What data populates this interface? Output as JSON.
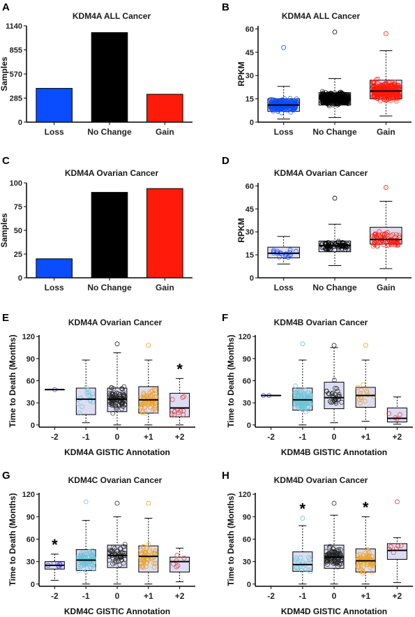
{
  "chart_data": [
    {
      "letter": "A",
      "type": "bar",
      "title": "KDM4A ALL Cancer",
      "categories": [
        "Loss",
        "No Change",
        "Gain"
      ],
      "values": [
        400,
        1060,
        330
      ],
      "colors": [
        "#0a4cff",
        "#000000",
        "#ff1a0a"
      ],
      "ylabel": "Samples",
      "ylim": [
        0,
        1140
      ],
      "yticks": [
        0,
        285,
        570,
        855,
        1140
      ],
      "ytick_labels": [
        "0",
        "285",
        "570",
        "855",
        "1140"
      ]
    },
    {
      "letter": "B",
      "type": "box",
      "title": "KDM4A ALL Cancer",
      "categories": [
        "Loss",
        "No Change",
        "Gain"
      ],
      "ylabel": "RPKM",
      "ylim": [
        0,
        62
      ],
      "yticks": [
        0,
        15,
        30,
        45,
        60
      ],
      "ytick_labels": [
        "0",
        "15",
        "30",
        "45",
        "60"
      ],
      "boxes": [
        {
          "q1": 7,
          "median": 11,
          "q3": 15,
          "low": 2,
          "high": 23,
          "n": 260,
          "color": "#0a4cff",
          "max": 48
        },
        {
          "q1": 11,
          "median": 15,
          "q3": 19,
          "low": 3,
          "high": 28,
          "n": 420,
          "color": "#000000",
          "max": 58
        },
        {
          "q1": 15,
          "median": 20,
          "q3": 27,
          "low": 4,
          "high": 46,
          "n": 300,
          "color": "#ff1a0a",
          "max": 57
        }
      ]
    },
    {
      "letter": "C",
      "type": "bar",
      "title": "KDM4A Ovarian Cancer",
      "categories": [
        "Loss",
        "No Change",
        "Gain"
      ],
      "values": [
        20,
        90,
        94
      ],
      "colors": [
        "#0a4cff",
        "#000000",
        "#ff1a0a"
      ],
      "ylabel": "Samples",
      "ylim": [
        0,
        100
      ],
      "yticks": [
        0,
        25,
        50,
        75,
        100
      ],
      "ytick_labels": [
        "0",
        "25",
        "50",
        "75",
        "100"
      ]
    },
    {
      "letter": "D",
      "type": "box",
      "title": "KDM4A Ovarian Cancer",
      "categories": [
        "Loss",
        "No Change",
        "Gain"
      ],
      "ylabel": "RPKM",
      "ylim": [
        0,
        62
      ],
      "yticks": [
        0,
        15,
        30,
        45,
        60
      ],
      "ytick_labels": [
        "0",
        "15",
        "30",
        "45",
        "60"
      ],
      "boxes": [
        {
          "q1": 13,
          "median": 16,
          "q3": 20,
          "low": 9,
          "high": 27,
          "n": 18,
          "color": "#0a4cff"
        },
        {
          "q1": 17,
          "median": 21,
          "q3": 24,
          "low": 8,
          "high": 35,
          "n": 70,
          "color": "#000000",
          "max": 52
        },
        {
          "q1": 22,
          "median": 25,
          "q3": 33,
          "low": 6,
          "high": 50,
          "n": 80,
          "color": "#ff1a0a",
          "max": 59
        }
      ]
    },
    {
      "letter": "E",
      "type": "box",
      "title": "KDM4A Ovarian Cancer",
      "categories": [
        "-2",
        "-1",
        "0",
        "+1",
        "+2"
      ],
      "xlabel": "KDM4A GISTIC Annotation",
      "ylabel": "Time to Death (Months)",
      "ylim": [
        -3,
        122
      ],
      "yticks": [
        0,
        30,
        60,
        90,
        120
      ],
      "ytick_labels": [
        "0",
        "30",
        "60",
        "90",
        "120"
      ],
      "significance": [
        "",
        "",
        "",
        "",
        "*"
      ],
      "boxes": [
        {
          "q1": 48,
          "median": 48,
          "q3": 48,
          "low": 48,
          "high": 48,
          "n": 1,
          "color": "#2b2bd6"
        },
        {
          "q1": 14,
          "median": 35,
          "q3": 50,
          "low": 3,
          "high": 88,
          "n": 16,
          "color": "#6cc4d8"
        },
        {
          "q1": 18,
          "median": 35,
          "q3": 50,
          "low": 0,
          "high": 98,
          "n": 85,
          "color": "#222222",
          "max": 110
        },
        {
          "q1": 16,
          "median": 34,
          "q3": 52,
          "low": 0,
          "high": 88,
          "n": 70,
          "color": "#f0a020",
          "max": 108
        },
        {
          "q1": 11,
          "median": 23,
          "q3": 43,
          "low": 0,
          "high": 63,
          "n": 12,
          "color": "#e53030"
        }
      ]
    },
    {
      "letter": "F",
      "type": "box",
      "title": "KDM4B Ovarian Cancer",
      "categories": [
        "-2",
        "-1",
        "0",
        "+1",
        "+2"
      ],
      "xlabel": "KDM4B GISTIC Annotation",
      "ylabel": "Time to Death (Months)",
      "ylim": [
        -3,
        122
      ],
      "yticks": [
        0,
        30,
        60,
        90,
        120
      ],
      "ytick_labels": [
        "0",
        "30",
        "60",
        "90",
        "120"
      ],
      "significance": [
        "",
        "",
        "",
        "",
        ""
      ],
      "boxes": [
        {
          "q1": 40,
          "median": 40,
          "q3": 40,
          "low": 40,
          "high": 40,
          "n": 2,
          "color": "#2b2bd6"
        },
        {
          "q1": 20,
          "median": 34,
          "q3": 50,
          "low": 0,
          "high": 88,
          "n": 130,
          "color": "#6cc4d8",
          "max": 110
        },
        {
          "q1": 22,
          "median": 37,
          "q3": 58,
          "low": 3,
          "high": 105,
          "n": 30,
          "color": "#222222",
          "max": 108
        },
        {
          "q1": 24,
          "median": 40,
          "q3": 51,
          "low": 5,
          "high": 88,
          "n": 14,
          "color": "#f0a020",
          "max": 108
        },
        {
          "q1": 4,
          "median": 9,
          "q3": 23,
          "low": 1,
          "high": 38,
          "n": 4,
          "color": "#e53030"
        }
      ]
    },
    {
      "letter": "G",
      "type": "box",
      "title": "KDM4C Ovarian Cancer",
      "categories": [
        "-2",
        "-1",
        "0",
        "+1",
        "+2"
      ],
      "xlabel": "KDM4C GISTIC Annotation",
      "ylabel": "Time to Death (Months)",
      "ylim": [
        -3,
        122
      ],
      "yticks": [
        0,
        30,
        60,
        90,
        120
      ],
      "ytick_labels": [
        "0",
        "30",
        "60",
        "90",
        "120"
      ],
      "significance": [
        "*",
        "",
        "",
        "",
        ""
      ],
      "boxes": [
        {
          "q1": 20,
          "median": 25,
          "q3": 30,
          "low": 5,
          "high": 40,
          "n": 6,
          "color": "#2b2bd6"
        },
        {
          "q1": 18,
          "median": 32,
          "q3": 46,
          "low": 0,
          "high": 85,
          "n": 90,
          "color": "#6cc4d8",
          "max": 110
        },
        {
          "q1": 22,
          "median": 38,
          "q3": 52,
          "low": 0,
          "high": 90,
          "n": 50,
          "color": "#222222",
          "max": 108
        },
        {
          "q1": 16,
          "median": 37,
          "q3": 51,
          "low": 0,
          "high": 88,
          "n": 55,
          "color": "#f0a020",
          "max": 108
        },
        {
          "q1": 16,
          "median": 30,
          "q3": 36,
          "low": 3,
          "high": 48,
          "n": 6,
          "color": "#e53030"
        }
      ]
    },
    {
      "letter": "H",
      "type": "box",
      "title": "KDM4D Ovarian Cancer",
      "categories": [
        "-2",
        "-1",
        "0",
        "+1",
        "+2"
      ],
      "xlabel": "KDM4D GISTIC Annotation",
      "ylabel": "Time to Death (Months)",
      "ylim": [
        -3,
        122
      ],
      "yticks": [
        0,
        30,
        60,
        90,
        120
      ],
      "ytick_labels": [
        "0",
        "30",
        "60",
        "90",
        "120"
      ],
      "significance": [
        "",
        "*",
        "",
        "*",
        ""
      ],
      "boxes": [
        null,
        {
          "q1": 17,
          "median": 26,
          "q3": 43,
          "low": 0,
          "high": 78,
          "n": 20,
          "color": "#6cc4d8",
          "max": 88
        },
        {
          "q1": 21,
          "median": 36,
          "q3": 52,
          "low": 0,
          "high": 92,
          "n": 90,
          "color": "#222222",
          "max": 108
        },
        {
          "q1": 16,
          "median": 31,
          "q3": 47,
          "low": 0,
          "high": 90,
          "n": 65,
          "color": "#f0a020"
        },
        {
          "q1": 33,
          "median": 45,
          "q3": 54,
          "low": 2,
          "high": 62,
          "n": 6,
          "color": "#e53030",
          "max": 110
        }
      ]
    }
  ]
}
